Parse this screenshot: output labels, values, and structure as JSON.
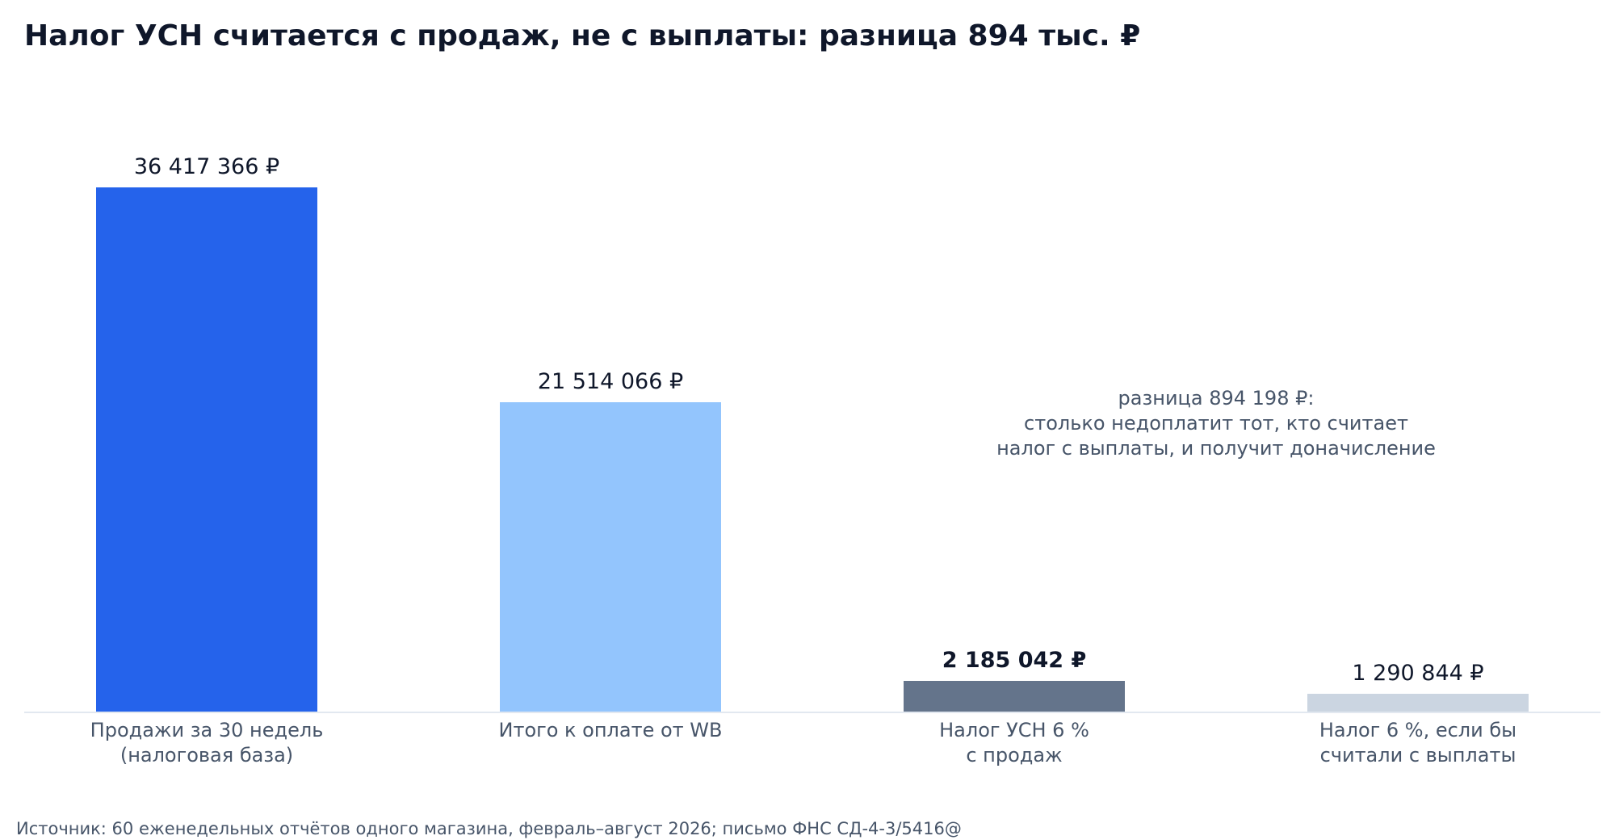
{
  "chart_data": {
    "type": "bar",
    "title": "Налог УСН считается с продаж, не с выплаты: разница 894 тыс. ₽",
    "xlabel": "",
    "ylabel": "",
    "ylim": [
      0,
      40000000
    ],
    "grid": false,
    "legend": "none",
    "categories": [
      [
        "Продажи за 30 недель",
        "(налоговая база)"
      ],
      [
        "Итого к оплате от WB"
      ],
      [
        "Налог УСН 6 %",
        "с продаж"
      ],
      [
        "Налог 6 %, если бы",
        "считали с выплаты"
      ]
    ],
    "values": [
      36417366,
      21514066,
      2185042,
      1290844
    ],
    "value_labels": [
      "36 417 366 ₽",
      "21 514 066 ₽",
      "2 185 042 ₽",
      "1 290 844 ₽"
    ],
    "emphasized_index": 2,
    "colors": [
      "#2563eb",
      "#93c5fd",
      "#64748b",
      "#cbd5e1"
    ],
    "annotation": [
      "разница 894 198 ₽:",
      "столько недоплатит тот, кто считает",
      "налог с выплаты, и получит доначисление"
    ],
    "source": "Источник: 60 еженедельных отчётов одного магазина, февраль–август 2026; письмо ФНС СД-4-3/5416@"
  },
  "colors": {
    "baseline": "#e2e8f0",
    "title": "#0f172a",
    "muted_text": "#475569"
  }
}
